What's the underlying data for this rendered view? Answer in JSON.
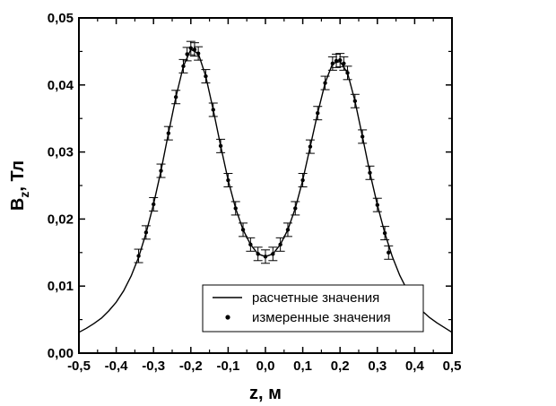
{
  "chart_data": {
    "type": "scatter",
    "xlabel": "z, м",
    "ylabel_main": "B",
    "ylabel_sub": "z",
    "ylabel_rest": ", Тл",
    "xlim": [
      -0.5,
      0.5
    ],
    "ylim": [
      0.0,
      0.05
    ],
    "x_ticks": [
      -0.5,
      -0.4,
      -0.3,
      -0.2,
      -0.1,
      0.0,
      0.1,
      0.2,
      0.3,
      0.4,
      0.5
    ],
    "x_tick_labels": [
      "-0,5",
      "-0,4",
      "-0,3",
      "-0,2",
      "-0,1",
      "0,0",
      "0,1",
      "0,2",
      "0,3",
      "0,4",
      "0,5"
    ],
    "y_ticks": [
      0.0,
      0.01,
      0.02,
      0.03,
      0.04,
      0.05
    ],
    "y_tick_labels": [
      "0,00",
      "0,01",
      "0,02",
      "0,03",
      "0,04",
      "0,05"
    ],
    "grid": false,
    "legend_position": "bottom-center",
    "series": [
      {
        "name": "расчетные значения",
        "kind": "line",
        "color": "#000000",
        "x": [
          -0.5,
          -0.48,
          -0.46,
          -0.44,
          -0.42,
          -0.4,
          -0.38,
          -0.36,
          -0.34,
          -0.32,
          -0.3,
          -0.28,
          -0.26,
          -0.24,
          -0.22,
          -0.2,
          -0.18,
          -0.16,
          -0.14,
          -0.12,
          -0.1,
          -0.08,
          -0.06,
          -0.04,
          -0.02,
          0.0,
          0.02,
          0.04,
          0.06,
          0.08,
          0.1,
          0.12,
          0.14,
          0.16,
          0.18,
          0.2,
          0.22,
          0.24,
          0.26,
          0.28,
          0.3,
          0.32,
          0.34,
          0.36,
          0.38,
          0.4,
          0.42,
          0.44,
          0.46,
          0.48,
          0.5
        ],
        "y": [
          0.0031,
          0.0037,
          0.0044,
          0.0052,
          0.0063,
          0.0076,
          0.0093,
          0.0115,
          0.0143,
          0.0179,
          0.0222,
          0.0272,
          0.0328,
          0.0382,
          0.0428,
          0.0453,
          0.0447,
          0.0413,
          0.0363,
          0.0309,
          0.0258,
          0.0216,
          0.0184,
          0.0162,
          0.0148,
          0.0144,
          0.0148,
          0.0162,
          0.0184,
          0.0216,
          0.0258,
          0.0308,
          0.0358,
          0.0403,
          0.0432,
          0.0435,
          0.0418,
          0.0376,
          0.0323,
          0.0269,
          0.0221,
          0.0179,
          0.0144,
          0.0116,
          0.0094,
          0.0077,
          0.0063,
          0.0053,
          0.0045,
          0.0038,
          0.0031
        ]
      },
      {
        "name": "измеренные значения",
        "kind": "points_with_error_bars",
        "color": "#000000",
        "error": 0.001,
        "x": [
          -0.34,
          -0.32,
          -0.3,
          -0.28,
          -0.26,
          -0.24,
          -0.22,
          -0.21,
          -0.2,
          -0.19,
          -0.18,
          -0.16,
          -0.14,
          -0.12,
          -0.1,
          -0.08,
          -0.06,
          -0.04,
          -0.02,
          0.0,
          0.02,
          0.04,
          0.06,
          0.08,
          0.1,
          0.12,
          0.14,
          0.16,
          0.18,
          0.19,
          0.2,
          0.21,
          0.22,
          0.24,
          0.26,
          0.28,
          0.3,
          0.32,
          0.33
        ],
        "y": [
          0.0145,
          0.018,
          0.0222,
          0.0272,
          0.0328,
          0.0382,
          0.0428,
          0.0446,
          0.0455,
          0.0453,
          0.0447,
          0.0413,
          0.0363,
          0.0309,
          0.0258,
          0.0216,
          0.0184,
          0.0162,
          0.0148,
          0.0144,
          0.0148,
          0.0162,
          0.0184,
          0.0216,
          0.0258,
          0.0308,
          0.0358,
          0.0403,
          0.0432,
          0.0436,
          0.0437,
          0.0432,
          0.0418,
          0.0376,
          0.0323,
          0.0269,
          0.0221,
          0.0179,
          0.015
        ]
      }
    ]
  }
}
